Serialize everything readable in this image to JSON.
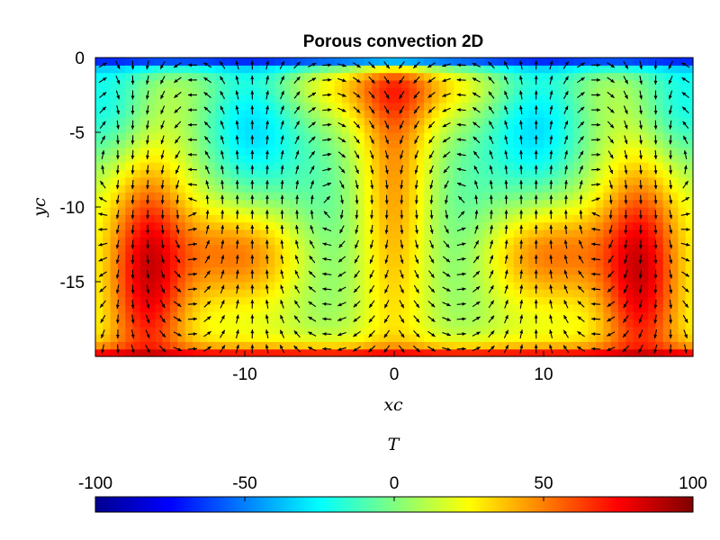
{
  "chart_data": {
    "type": "heatmap",
    "title": "Porous convection 2D",
    "xlabel": "xc",
    "ylabel": "yc",
    "xlim": [
      -20,
      20
    ],
    "ylim": [
      -20,
      0
    ],
    "xticks": [
      {
        "value": -10,
        "label": "-10"
      },
      {
        "value": 0,
        "label": "0"
      },
      {
        "value": 10,
        "label": "10"
      }
    ],
    "yticks": [
      {
        "value": 0,
        "label": "0"
      },
      {
        "value": -5,
        "label": "-5"
      },
      {
        "value": -10,
        "label": "-10"
      },
      {
        "value": -15,
        "label": "-15"
      }
    ],
    "colorbar": {
      "label": "T",
      "colormap": "jet",
      "location": "bottom",
      "limits": [
        -100,
        100
      ],
      "ticks": [
        {
          "value": -100,
          "label": "-100"
        },
        {
          "value": -50,
          "label": "-50"
        },
        {
          "value": 0,
          "label": "0"
        },
        {
          "value": 50,
          "label": "50"
        },
        {
          "value": 100,
          "label": "100"
        }
      ]
    },
    "overlay": "velocity quiver arrows (black)",
    "grid": false
  }
}
